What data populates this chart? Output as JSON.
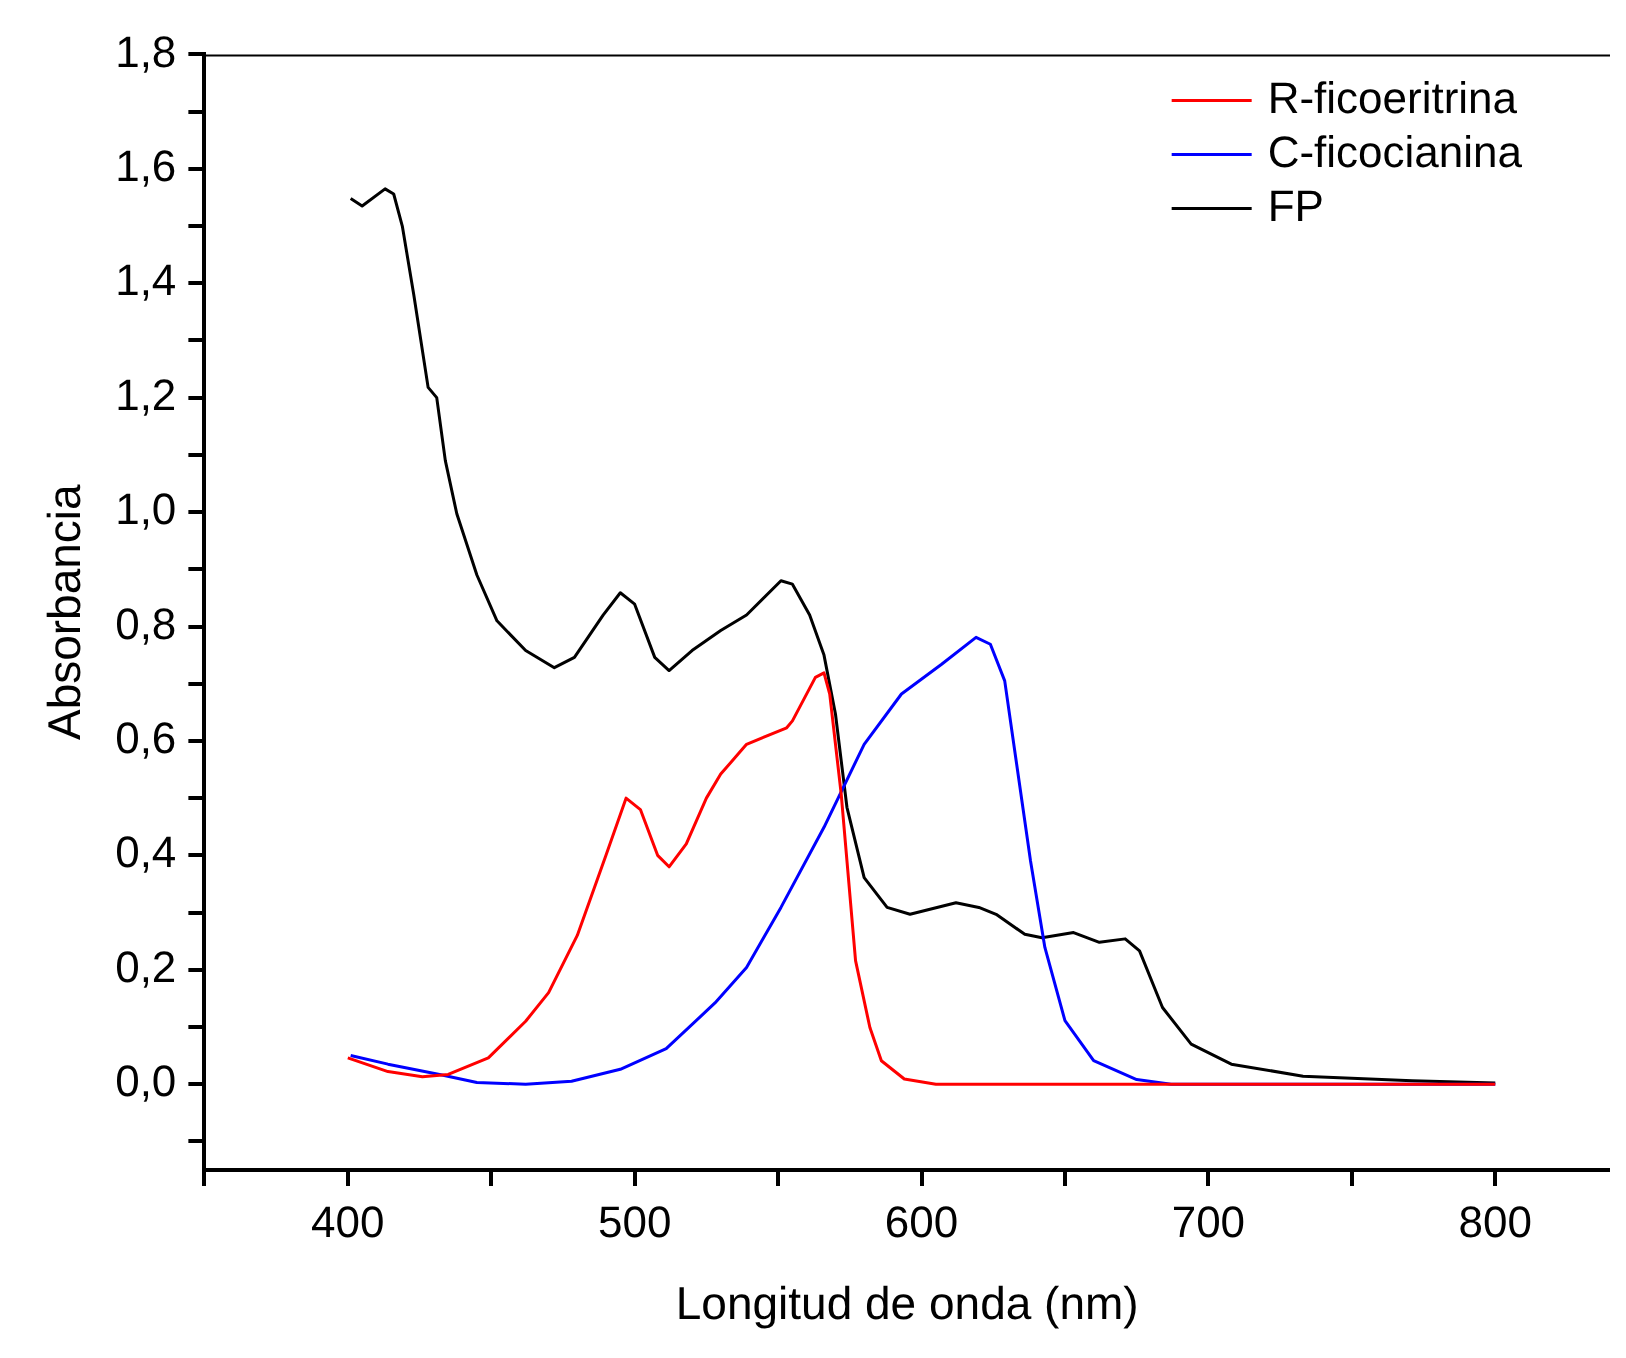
{
  "chart_data": {
    "type": "line",
    "xlabel": "Longitud de onda (nm)",
    "ylabel": "Absorbancia",
    "xlim": [
      350,
      840
    ],
    "ylim": [
      -0.15,
      1.8
    ],
    "xticks": [
      {
        "value": 350,
        "label": null
      },
      400,
      {
        "value": 450,
        "label": null
      },
      500,
      {
        "value": 550,
        "label": null
      },
      600,
      {
        "value": 650,
        "label": null
      },
      700,
      {
        "value": 750,
        "label": null
      },
      800
    ],
    "yticks": [
      {
        "value": -0.1,
        "label": null
      },
      {
        "value": 0,
        "label": "0,0"
      },
      {
        "value": 0.1,
        "label": null
      },
      {
        "value": 0.2,
        "label": "0,2"
      },
      {
        "value": 0.3,
        "label": null
      },
      {
        "value": 0.4,
        "label": "0,4"
      },
      {
        "value": 0.5,
        "label": null
      },
      {
        "value": 0.6,
        "label": "0,6"
      },
      {
        "value": 0.7,
        "label": null
      },
      {
        "value": 0.8,
        "label": "0,8"
      },
      {
        "value": 0.9,
        "label": null
      },
      {
        "value": 1.0,
        "label": "1,0"
      },
      {
        "value": 1.1,
        "label": null
      },
      {
        "value": 1.2,
        "label": "1,2"
      },
      {
        "value": 1.3,
        "label": null
      },
      {
        "value": 1.4,
        "label": "1,4"
      },
      {
        "value": 1.5,
        "label": null
      },
      {
        "value": 1.6,
        "label": "1,6"
      },
      {
        "value": 1.7,
        "label": null
      },
      {
        "value": 1.8,
        "label": "1,8"
      }
    ],
    "grid": false,
    "legend": "top right",
    "marker": "none",
    "line_style": "solid",
    "series": [
      {
        "name": "R-ficoeritrina",
        "color": "#ff0000",
        "x": [
          400,
          414,
          426,
          435,
          449,
          462,
          470,
          480,
          490,
          497,
          502,
          508,
          512,
          518,
          525,
          530,
          539,
          553,
          555,
          563,
          566,
          568,
          572,
          577,
          582,
          586,
          594,
          605,
          700,
          800
        ],
        "values": [
          0.046,
          0.022,
          0.013,
          0.017,
          0.046,
          0.11,
          0.16,
          0.26,
          0.4,
          0.5,
          0.48,
          0.4,
          0.38,
          0.42,
          0.5,
          0.542,
          0.594,
          0.623,
          0.635,
          0.711,
          0.719,
          0.682,
          0.507,
          0.216,
          0.099,
          0.041,
          0.009,
          0,
          0,
          0
        ]
      },
      {
        "name": "C-ficocianina",
        "color": "#0000ff",
        "x": [
          401,
          414,
          432,
          445,
          462,
          478,
          495,
          511,
          528,
          539,
          551,
          566,
          580,
          593,
          607,
          619,
          624,
          629,
          633,
          638,
          643,
          650,
          660,
          675,
          687,
          800
        ],
        "values": [
          0.05,
          0.035,
          0.017,
          0.003,
          0,
          0.005,
          0.026,
          0.062,
          0.142,
          0.204,
          0.309,
          0.449,
          0.594,
          0.682,
          0.734,
          0.781,
          0.769,
          0.705,
          0.565,
          0.39,
          0.239,
          0.111,
          0.041,
          0.008,
          0,
          0
        ]
      },
      {
        "name": "FP",
        "color": "#000000",
        "x": [
          401,
          405,
          413,
          416,
          419,
          423,
          428,
          431,
          434,
          438,
          445,
          452,
          462,
          472,
          479,
          489,
          495,
          500,
          507,
          512,
          520,
          530,
          539,
          551,
          555,
          561,
          566,
          570,
          574,
          580,
          588,
          596,
          612,
          620,
          626,
          636,
          642,
          653,
          662,
          671,
          676,
          684,
          694,
          708,
          733,
          771,
          800
        ],
        "values": [
          1.548,
          1.535,
          1.565,
          1.556,
          1.5,
          1.38,
          1.218,
          1.2,
          1.09,
          0.997,
          0.89,
          0.81,
          0.758,
          0.728,
          0.746,
          0.82,
          0.859,
          0.839,
          0.746,
          0.723,
          0.758,
          0.793,
          0.82,
          0.88,
          0.874,
          0.82,
          0.75,
          0.647,
          0.484,
          0.361,
          0.309,
          0.297,
          0.317,
          0.309,
          0.297,
          0.262,
          0.256,
          0.265,
          0.248,
          0.254,
          0.233,
          0.134,
          0.07,
          0.035,
          0.014,
          0.006,
          0.002
        ]
      }
    ]
  }
}
